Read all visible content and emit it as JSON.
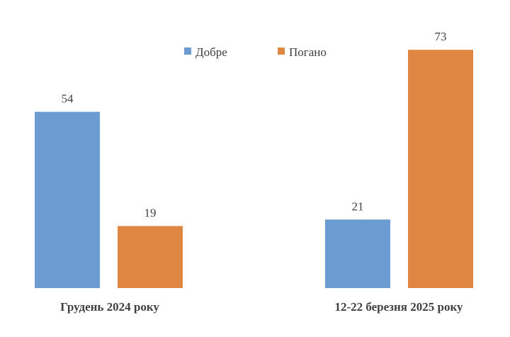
{
  "chart_data": {
    "type": "bar",
    "categories": [
      "Грудень 2024 року",
      "12-22 березня 2025 року"
    ],
    "series": [
      {
        "name": "Добре",
        "values": [
          54,
          21
        ],
        "color": "#6a9bd1"
      },
      {
        "name": "Погано",
        "values": [
          19,
          73
        ],
        "color": "#e08643"
      }
    ],
    "ylim": [
      0,
      75
    ],
    "grid": false,
    "legend_position": "top-center"
  }
}
